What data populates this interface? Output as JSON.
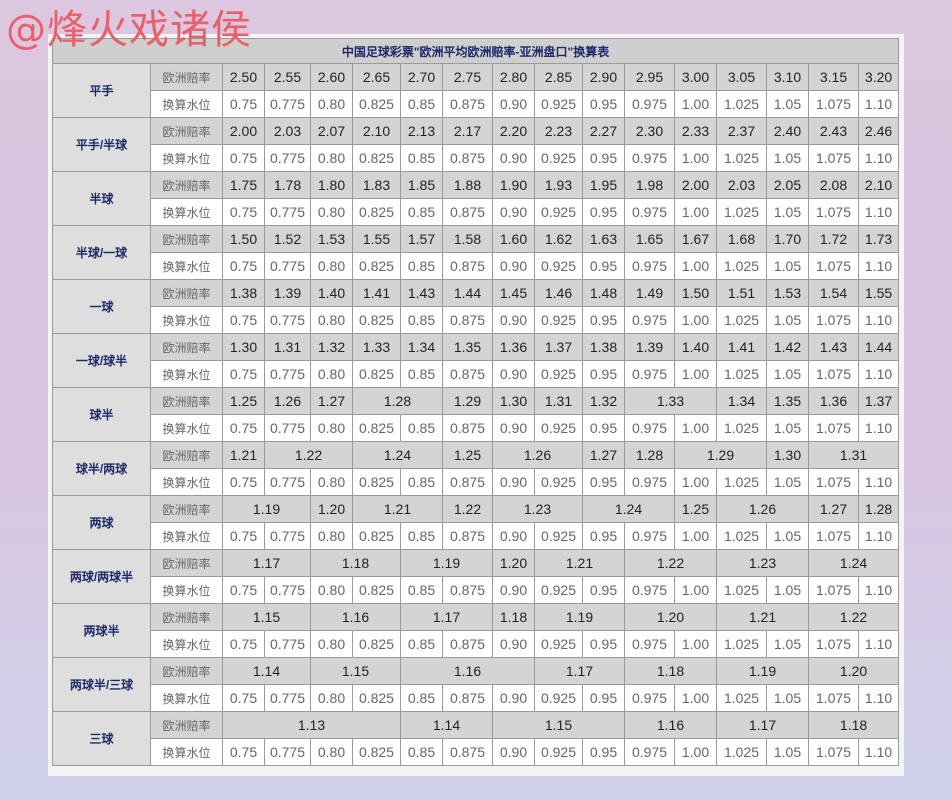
{
  "watermark": "@烽火戏诸侯",
  "title": "中国足球彩票\"欧洲平均欧洲赔率-亚洲盘口\"换算表",
  "row_labels": {
    "odds": "欧洲赔率",
    "water": "换算水位"
  },
  "water_values": [
    "0.75",
    "0.775",
    "0.80",
    "0.825",
    "0.85",
    "0.875",
    "0.90",
    "0.925",
    "0.95",
    "0.975",
    "1.00",
    "1.025",
    "1.05",
    "1.075",
    "1.10"
  ],
  "groups": [
    {
      "label": "平手",
      "odds": [
        {
          "value": "2.50",
          "cols": 1
        },
        {
          "value": "2.55",
          "cols": 1
        },
        {
          "value": "2.60",
          "cols": 1
        },
        {
          "value": "2.65",
          "cols": 1
        },
        {
          "value": "2.70",
          "cols": 1
        },
        {
          "value": "2.75",
          "cols": 1
        },
        {
          "value": "2.80",
          "cols": 1
        },
        {
          "value": "2.85",
          "cols": 1
        },
        {
          "value": "2.90",
          "cols": 1
        },
        {
          "value": "2.95",
          "cols": 1
        },
        {
          "value": "3.00",
          "cols": 1
        },
        {
          "value": "3.05",
          "cols": 1
        },
        {
          "value": "3.10",
          "cols": 1
        },
        {
          "value": "3.15",
          "cols": 1
        },
        {
          "value": "3.20",
          "cols": 1
        }
      ]
    },
    {
      "label": "平手/半球",
      "odds": [
        {
          "value": "2.00",
          "cols": 1
        },
        {
          "value": "2.03",
          "cols": 1
        },
        {
          "value": "2.07",
          "cols": 1
        },
        {
          "value": "2.10",
          "cols": 1
        },
        {
          "value": "2.13",
          "cols": 1
        },
        {
          "value": "2.17",
          "cols": 1
        },
        {
          "value": "2.20",
          "cols": 1
        },
        {
          "value": "2.23",
          "cols": 1
        },
        {
          "value": "2.27",
          "cols": 1
        },
        {
          "value": "2.30",
          "cols": 1
        },
        {
          "value": "2.33",
          "cols": 1
        },
        {
          "value": "2.37",
          "cols": 1
        },
        {
          "value": "2.40",
          "cols": 1
        },
        {
          "value": "2.43",
          "cols": 1
        },
        {
          "value": "2.46",
          "cols": 1
        }
      ]
    },
    {
      "label": "半球",
      "odds": [
        {
          "value": "1.75",
          "cols": 1
        },
        {
          "value": "1.78",
          "cols": 1
        },
        {
          "value": "1.80",
          "cols": 1
        },
        {
          "value": "1.83",
          "cols": 1
        },
        {
          "value": "1.85",
          "cols": 1
        },
        {
          "value": "1.88",
          "cols": 1
        },
        {
          "value": "1.90",
          "cols": 1
        },
        {
          "value": "1.93",
          "cols": 1
        },
        {
          "value": "1.95",
          "cols": 1
        },
        {
          "value": "1.98",
          "cols": 1
        },
        {
          "value": "2.00",
          "cols": 1
        },
        {
          "value": "2.03",
          "cols": 1
        },
        {
          "value": "2.05",
          "cols": 1
        },
        {
          "value": "2.08",
          "cols": 1
        },
        {
          "value": "2.10",
          "cols": 1
        }
      ]
    },
    {
      "label": "半球/一球",
      "odds": [
        {
          "value": "1.50",
          "cols": 1
        },
        {
          "value": "1.52",
          "cols": 1
        },
        {
          "value": "1.53",
          "cols": 1
        },
        {
          "value": "1.55",
          "cols": 1
        },
        {
          "value": "1.57",
          "cols": 1
        },
        {
          "value": "1.58",
          "cols": 1
        },
        {
          "value": "1.60",
          "cols": 1
        },
        {
          "value": "1.62",
          "cols": 1
        },
        {
          "value": "1.63",
          "cols": 1
        },
        {
          "value": "1.65",
          "cols": 1
        },
        {
          "value": "1.67",
          "cols": 1
        },
        {
          "value": "1.68",
          "cols": 1
        },
        {
          "value": "1.70",
          "cols": 1
        },
        {
          "value": "1.72",
          "cols": 1
        },
        {
          "value": "1.73",
          "cols": 1
        }
      ]
    },
    {
      "label": "一球",
      "odds": [
        {
          "value": "1.38",
          "cols": 1
        },
        {
          "value": "1.39",
          "cols": 1
        },
        {
          "value": "1.40",
          "cols": 1
        },
        {
          "value": "1.41",
          "cols": 1
        },
        {
          "value": "1.43",
          "cols": 1
        },
        {
          "value": "1.44",
          "cols": 1
        },
        {
          "value": "1.45",
          "cols": 1
        },
        {
          "value": "1.46",
          "cols": 1
        },
        {
          "value": "1.48",
          "cols": 1
        },
        {
          "value": "1.49",
          "cols": 1
        },
        {
          "value": "1.50",
          "cols": 1
        },
        {
          "value": "1.51",
          "cols": 1
        },
        {
          "value": "1.53",
          "cols": 1
        },
        {
          "value": "1.54",
          "cols": 1
        },
        {
          "value": "1.55",
          "cols": 1
        }
      ]
    },
    {
      "label": "一球/球半",
      "odds": [
        {
          "value": "1.30",
          "cols": 1
        },
        {
          "value": "1.31",
          "cols": 1
        },
        {
          "value": "1.32",
          "cols": 1
        },
        {
          "value": "1.33",
          "cols": 1
        },
        {
          "value": "1.34",
          "cols": 1
        },
        {
          "value": "1.35",
          "cols": 1
        },
        {
          "value": "1.36",
          "cols": 1
        },
        {
          "value": "1.37",
          "cols": 1
        },
        {
          "value": "1.38",
          "cols": 1
        },
        {
          "value": "1.39",
          "cols": 1
        },
        {
          "value": "1.40",
          "cols": 1
        },
        {
          "value": "1.41",
          "cols": 1
        },
        {
          "value": "1.42",
          "cols": 1
        },
        {
          "value": "1.43",
          "cols": 1
        },
        {
          "value": "1.44",
          "cols": 1
        }
      ]
    },
    {
      "label": "球半",
      "odds": [
        {
          "value": "1.25",
          "cols": 1
        },
        {
          "value": "1.26",
          "cols": 1
        },
        {
          "value": "1.27",
          "cols": 1
        },
        {
          "value": "1.28",
          "cols": 2
        },
        {
          "value": "1.29",
          "cols": 1
        },
        {
          "value": "1.30",
          "cols": 1
        },
        {
          "value": "1.31",
          "cols": 1
        },
        {
          "value": "1.32",
          "cols": 1
        },
        {
          "value": "1.33",
          "cols": 2
        },
        {
          "value": "1.34",
          "cols": 1
        },
        {
          "value": "1.35",
          "cols": 1
        },
        {
          "value": "1.36",
          "cols": 1
        },
        {
          "value": "1.37",
          "cols": 1
        }
      ]
    },
    {
      "label": "球半/两球",
      "odds": [
        {
          "value": "1.21",
          "cols": 1
        },
        {
          "value": "1.22",
          "cols": 2
        },
        {
          "value": "1.24",
          "cols": 2
        },
        {
          "value": "1.25",
          "cols": 1
        },
        {
          "value": "1.26",
          "cols": 2
        },
        {
          "value": "1.27",
          "cols": 1
        },
        {
          "value": "1.28",
          "cols": 1
        },
        {
          "value": "1.29",
          "cols": 2
        },
        {
          "value": "1.30",
          "cols": 1
        },
        {
          "value": "1.31",
          "cols": 2
        }
      ]
    },
    {
      "label": "两球",
      "odds": [
        {
          "value": "1.19",
          "cols": 2
        },
        {
          "value": "1.20",
          "cols": 1
        },
        {
          "value": "1.21",
          "cols": 2
        },
        {
          "value": "1.22",
          "cols": 1
        },
        {
          "value": "1.23",
          "cols": 2
        },
        {
          "value": "1.24",
          "cols": 2
        },
        {
          "value": "1.25",
          "cols": 1
        },
        {
          "value": "1.26",
          "cols": 2
        },
        {
          "value": "1.27",
          "cols": 1
        },
        {
          "value": "1.28",
          "cols": 1
        }
      ]
    },
    {
      "label": "两球/两球半",
      "odds": [
        {
          "value": "1.17",
          "cols": 2
        },
        {
          "value": "1.18",
          "cols": 2
        },
        {
          "value": "1.19",
          "cols": 2
        },
        {
          "value": "1.20",
          "cols": 1
        },
        {
          "value": "1.21",
          "cols": 2
        },
        {
          "value": "1.22",
          "cols": 2
        },
        {
          "value": "1.23",
          "cols": 2
        },
        {
          "value": "1.24",
          "cols": 2
        }
      ]
    },
    {
      "label": "两球半",
      "odds": [
        {
          "value": "1.15",
          "cols": 2
        },
        {
          "value": "1.16",
          "cols": 2
        },
        {
          "value": "1.17",
          "cols": 2
        },
        {
          "value": "1.18",
          "cols": 1
        },
        {
          "value": "1.19",
          "cols": 2
        },
        {
          "value": "1.20",
          "cols": 2
        },
        {
          "value": "1.21",
          "cols": 2
        },
        {
          "value": "1.22",
          "cols": 2
        }
      ]
    },
    {
      "label": "两球半/三球",
      "odds": [
        {
          "value": "1.14",
          "cols": 2
        },
        {
          "value": "1.15",
          "cols": 2
        },
        {
          "value": "1.16",
          "cols": 3
        },
        {
          "value": "1.17",
          "cols": 2
        },
        {
          "value": "1.18",
          "cols": 2
        },
        {
          "value": "1.19",
          "cols": 2
        },
        {
          "value": "1.20",
          "cols": 2
        }
      ]
    },
    {
      "label": "三球",
      "odds": [
        {
          "value": "1.13",
          "cols": 4
        },
        {
          "value": "1.14",
          "cols": 2
        },
        {
          "value": "1.15",
          "cols": 3
        },
        {
          "value": "1.16",
          "cols": 2
        },
        {
          "value": "1.17",
          "cols": 2
        },
        {
          "value": "1.18",
          "cols": 2
        }
      ]
    }
  ]
}
